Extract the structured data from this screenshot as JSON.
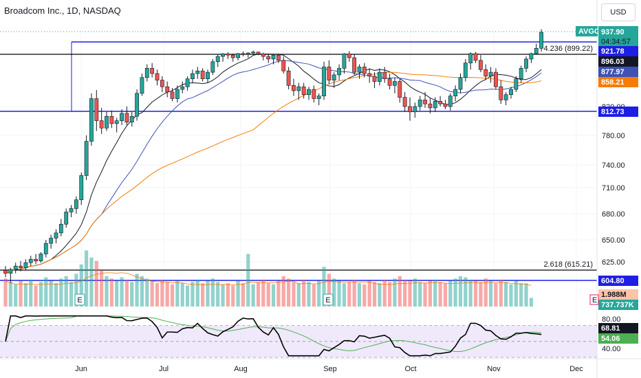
{
  "header": {
    "title": "Broadcom Inc., 1D, NASDAQ",
    "currency_label": "USD"
  },
  "colors": {
    "up": "#26a69a",
    "down": "#ef5350",
    "sma_fast": "#131722",
    "sma_mid": "#3f51b5",
    "sma_slow": "#f57c00",
    "level": "#1e1ee6",
    "rsi": "#000000",
    "rsi_ma": "#4caf50",
    "rsi_band": "#e8e0fa"
  },
  "chart_data": {
    "type": "candlestick",
    "symbol": "AVGO",
    "x_ticks": [
      "Jun",
      "Jul",
      "Aug",
      "Sep",
      "Oct",
      "Nov",
      "Dec"
    ],
    "y_ticks": [
      "820.00",
      "780.00",
      "740.00",
      "710.00",
      "680.00",
      "650.00",
      "625.00"
    ],
    "price_labels": {
      "symbol": "AVGO",
      "last": "937.90",
      "countdown": "04:34:57",
      "level_top": "921.78",
      "sma_fast": "896.03",
      "sma_mid": "877.97",
      "sma_slow": "858.21",
      "level_mid": "812.73",
      "level_low": "604.80"
    },
    "annotations": [
      {
        "text": "4.236 (899.22)",
        "value": 899.22
      },
      {
        "text": "2.618 (615.21)",
        "value": 615.21
      }
    ],
    "levels": [
      921.78,
      812.73,
      604.8
    ],
    "ohlc": [
      [
        615,
        620,
        608,
        612
      ],
      [
        612,
        618,
        602,
        616
      ],
      [
        616,
        624,
        612,
        620
      ],
      [
        620,
        626,
        614,
        618
      ],
      [
        618,
        628,
        615,
        624
      ],
      [
        624,
        632,
        620,
        628
      ],
      [
        628,
        634,
        622,
        626
      ],
      [
        626,
        636,
        624,
        634
      ],
      [
        634,
        650,
        630,
        646
      ],
      [
        646,
        656,
        640,
        652
      ],
      [
        652,
        662,
        646,
        658
      ],
      [
        658,
        674,
        654,
        668
      ],
      [
        668,
        686,
        664,
        682
      ],
      [
        682,
        690,
        676,
        686
      ],
      [
        686,
        700,
        680,
        696
      ],
      [
        696,
        730,
        690,
        726
      ],
      [
        726,
        780,
        720,
        772
      ],
      [
        772,
        840,
        766,
        832
      ],
      [
        832,
        845,
        786,
        800
      ],
      [
        800,
        818,
        782,
        790
      ],
      [
        790,
        812,
        786,
        806
      ],
      [
        806,
        814,
        790,
        796
      ],
      [
        796,
        804,
        784,
        800
      ],
      [
        800,
        816,
        794,
        810
      ],
      [
        810,
        820,
        794,
        798
      ],
      [
        798,
        812,
        792,
        806
      ],
      [
        806,
        846,
        800,
        840
      ],
      [
        840,
        870,
        836,
        864
      ],
      [
        864,
        884,
        858,
        878
      ],
      [
        878,
        886,
        864,
        870
      ],
      [
        870,
        876,
        852,
        860
      ],
      [
        860,
        866,
        842,
        850
      ],
      [
        850,
        858,
        834,
        842
      ],
      [
        842,
        848,
        828,
        832
      ],
      [
        832,
        852,
        826,
        846
      ],
      [
        846,
        858,
        840,
        850
      ],
      [
        850,
        866,
        844,
        862
      ],
      [
        862,
        876,
        856,
        870
      ],
      [
        870,
        880,
        862,
        874
      ],
      [
        874,
        878,
        858,
        862
      ],
      [
        862,
        876,
        856,
        872
      ],
      [
        872,
        892,
        868,
        888
      ],
      [
        888,
        900,
        880,
        896
      ],
      [
        896,
        908,
        888,
        902
      ],
      [
        902,
        912,
        892,
        898
      ],
      [
        898,
        904,
        888,
        894
      ],
      [
        894,
        908,
        890,
        904
      ],
      [
        904,
        918,
        896,
        900
      ],
      [
        900,
        912,
        894,
        908
      ],
      [
        908,
        922,
        898,
        914
      ],
      [
        914,
        916,
        898,
        902
      ],
      [
        902,
        910,
        890,
        896
      ],
      [
        896,
        904,
        886,
        892
      ],
      [
        892,
        902,
        884,
        898
      ],
      [
        898,
        904,
        886,
        890
      ],
      [
        890,
        896,
        870,
        874
      ],
      [
        874,
        880,
        846,
        852
      ],
      [
        852,
        862,
        836,
        844
      ],
      [
        844,
        856,
        830,
        850
      ],
      [
        850,
        856,
        832,
        838
      ],
      [
        838,
        850,
        830,
        846
      ],
      [
        846,
        852,
        826,
        832
      ],
      [
        832,
        840,
        822,
        836
      ],
      [
        836,
        888,
        830,
        880
      ],
      [
        880,
        890,
        854,
        860
      ],
      [
        860,
        872,
        848,
        868
      ],
      [
        868,
        884,
        860,
        878
      ],
      [
        878,
        908,
        870,
        902
      ],
      [
        902,
        920,
        888,
        894
      ],
      [
        894,
        900,
        868,
        872
      ],
      [
        872,
        884,
        862,
        880
      ],
      [
        880,
        886,
        864,
        870
      ],
      [
        870,
        878,
        856,
        866
      ],
      [
        866,
        872,
        848,
        858
      ],
      [
        858,
        878,
        852,
        872
      ],
      [
        872,
        880,
        856,
        862
      ],
      [
        862,
        870,
        846,
        852
      ],
      [
        852,
        864,
        840,
        858
      ],
      [
        858,
        862,
        826,
        834
      ],
      [
        834,
        842,
        812,
        820
      ],
      [
        820,
        834,
        800,
        812
      ],
      [
        812,
        826,
        804,
        820
      ],
      [
        820,
        836,
        814,
        830
      ],
      [
        830,
        842,
        818,
        824
      ],
      [
        824,
        832,
        810,
        818
      ],
      [
        818,
        834,
        812,
        828
      ],
      [
        828,
        836,
        820,
        824
      ],
      [
        824,
        830,
        816,
        820
      ],
      [
        820,
        840,
        814,
        836
      ],
      [
        836,
        852,
        828,
        846
      ],
      [
        846,
        870,
        840,
        864
      ],
      [
        864,
        892,
        858,
        886
      ],
      [
        886,
        912,
        876,
        904
      ],
      [
        904,
        914,
        886,
        890
      ],
      [
        890,
        898,
        872,
        876
      ],
      [
        876,
        884,
        860,
        866
      ],
      [
        866,
        880,
        856,
        872
      ],
      [
        872,
        878,
        846,
        850
      ],
      [
        850,
        860,
        824,
        830
      ],
      [
        830,
        842,
        822,
        838
      ],
      [
        838,
        850,
        832,
        846
      ],
      [
        846,
        866,
        842,
        862
      ],
      [
        862,
        882,
        856,
        878
      ],
      [
        878,
        896,
        872,
        892
      ],
      [
        892,
        910,
        886,
        904
      ],
      [
        904,
        928,
        900,
        924
      ],
      [
        924,
        942,
        918,
        937.9
      ]
    ],
    "volume_m": [
      2.4,
      2.1,
      1.9,
      2.2,
      2.0,
      2.3,
      1.8,
      2.1,
      2.5,
      2.2,
      2.0,
      2.4,
      2.6,
      2.1,
      2.8,
      3.6,
      4.8,
      4.2,
      3.9,
      3.1,
      2.6,
      2.4,
      2.2,
      2.5,
      2.3,
      2.1,
      2.8,
      2.6,
      2.4,
      2.2,
      2.0,
      2.3,
      2.1,
      1.9,
      2.2,
      2.0,
      1.8,
      2.1,
      2.3,
      2.0,
      2.2,
      2.4,
      2.1,
      1.9,
      2.0,
      1.8,
      2.2,
      2.0,
      4.5,
      1.9,
      2.1,
      2.3,
      2.0,
      1.9,
      2.2,
      2.6,
      2.4,
      2.1,
      2.0,
      2.3,
      2.1,
      1.9,
      2.2,
      3.4,
      2.8,
      2.4,
      2.2,
      2.0,
      2.1,
      2.3,
      2.0,
      1.9,
      2.2,
      2.1,
      2.0,
      2.3,
      2.1,
      2.4,
      2.6,
      2.3,
      2.2,
      2.4,
      2.1,
      2.0,
      2.2,
      2.3,
      2.1,
      2.0,
      2.2,
      2.4,
      2.6,
      2.5,
      2.3,
      2.2,
      2.1,
      2.4,
      2.2,
      2.0,
      2.3,
      2.1,
      1.9,
      2.2,
      2.0,
      1.988,
      0.738
    ],
    "volume_labels": {
      "ma": "1.988M",
      "last": "737.737K",
      "earnings_marker": "E"
    },
    "rsi": {
      "labels": [
        "80.00",
        "40.00"
      ],
      "value_label": "68.81",
      "ma_label": "54.06",
      "band": [
        70,
        30
      ],
      "mid": 50
    }
  }
}
